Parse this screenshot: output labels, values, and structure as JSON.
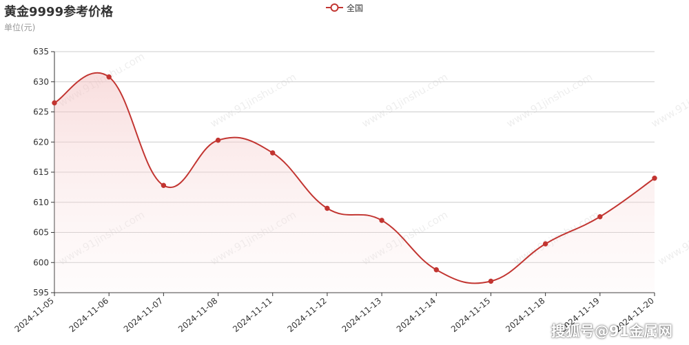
{
  "header": {
    "title": "黄金9999参考价格",
    "subtitle": "单位(元)"
  },
  "watermark": {
    "tile_text": "www.91jinshu.com",
    "corner_text": "搜狐号@91金属网"
  },
  "colors": {
    "line": "#c23531",
    "grid": "#cccccc",
    "axis": "#333333"
  },
  "chart_data": {
    "type": "line",
    "title": "黄金9999参考价格",
    "ylabel": "单位(元)",
    "smooth": true,
    "area_fill": true,
    "legend_position": "top-center",
    "grid": true,
    "categories": [
      "2024-11-05",
      "2024-11-06",
      "2024-11-07",
      "2024-11-08",
      "2024-11-11",
      "2024-11-12",
      "2024-11-13",
      "2024-11-14",
      "2024-11-15",
      "2024-11-18",
      "2024-11-19",
      "2024-11-20"
    ],
    "series": [
      {
        "name": "全国",
        "values": [
          626.5,
          630.8,
          612.8,
          620.3,
          618.2,
          609.0,
          607.0,
          598.8,
          596.9,
          603.1,
          607.6,
          614.0
        ]
      }
    ],
    "ylim": [
      595,
      635
    ],
    "yticks": [
      595,
      600,
      605,
      610,
      615,
      620,
      625,
      630,
      635
    ]
  }
}
